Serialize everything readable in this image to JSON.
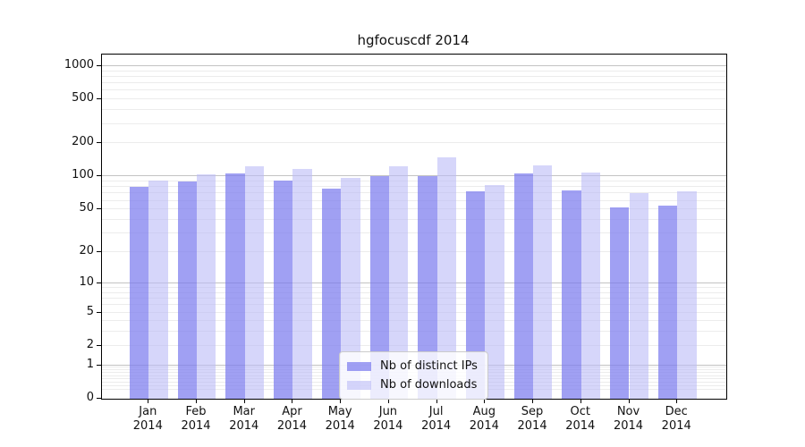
{
  "title": "hgfocuscdf 2014",
  "chart_data": {
    "type": "bar",
    "title": "hgfocuscdf 2014",
    "y_scale": "log10(value+1)",
    "grid": true,
    "categories": [
      "Jan",
      "Feb",
      "Mar",
      "Apr",
      "May",
      "Jun",
      "Jul",
      "Aug",
      "Sep",
      "Oct",
      "Nov",
      "Dec"
    ],
    "x_year_label": "2014",
    "yticks": [
      0,
      1,
      2,
      5,
      10,
      20,
      50,
      100,
      200,
      500,
      1000
    ],
    "ylim": [
      0,
      1300
    ],
    "legend_position": "inside-bottom-center",
    "series": [
      {
        "name": "Nb of distinct IPs",
        "color": "rgba(124,124,238,0.72)",
        "color_hex_approx": "#a5a5f2",
        "values": [
          81,
          91,
          107,
          92,
          78,
          100,
          101,
          74,
          107,
          75,
          52,
          54
        ]
      },
      {
        "name": "Nb of downloads",
        "color": "rgba(186,186,246,0.60)",
        "color_hex_approx": "#dadaf8",
        "values": [
          92,
          104,
          125,
          118,
          97,
          124,
          149,
          84,
          126,
          108,
          71,
          74
        ]
      }
    ]
  }
}
